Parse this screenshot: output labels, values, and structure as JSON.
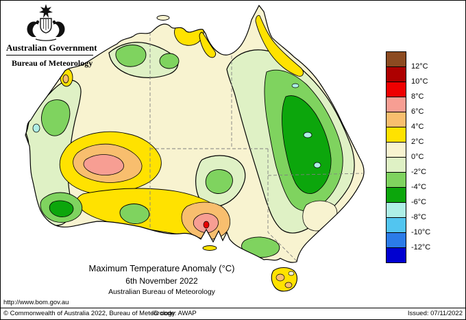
{
  "header": {
    "government": "Australian Government",
    "bureau": "Bureau of Meteorology"
  },
  "map": {
    "title": "Maximum Temperature Anomaly (°C)",
    "date": "6th November 2022",
    "source": "Australian Bureau of Meteorology"
  },
  "legend": {
    "labels": [
      "12°C",
      "10°C",
      "8°C",
      "6°C",
      "4°C",
      "2°C",
      "0°C",
      "-2°C",
      "-4°C",
      "-6°C",
      "-8°C",
      "-10°C",
      "-12°C"
    ],
    "colors": [
      "#8C4B21",
      "#AD0000",
      "#EE0000",
      "#F79E93",
      "#F8BE6E",
      "#FFE200",
      "#F8F3D0",
      "#DFF1C5",
      "#7FD35F",
      "#0CA60C",
      "#AEEFE6",
      "#52C5F0",
      "#2B7BE8",
      "#0000D0"
    ]
  },
  "palette": {
    "cream": "#F8F3D0",
    "pale_green": "#DFF1C5",
    "mid_green": "#7FD35F",
    "dark_green": "#0CA60C",
    "yellow": "#FFE200",
    "orange": "#F8BE6E",
    "salmon": "#F79E93",
    "red": "#E80000",
    "cyan": "#AEEFE6"
  },
  "footer": {
    "url": "http://www.bom.gov.au",
    "copyright": "© Commonwealth of Australia 2022, Bureau of Meteorology",
    "id_code": "ID code: AWAP",
    "issued": "Issued: 07/11/2022"
  }
}
